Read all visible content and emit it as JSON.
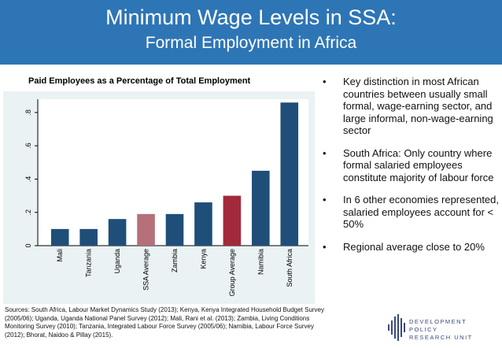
{
  "header": {
    "title": "Minimum Wage Levels in SSA:",
    "subtitle": "Formal Employment in Africa"
  },
  "chart_data": {
    "type": "bar",
    "title": "Paid Employees as a Percentage of Total Employment",
    "categories": [
      "Mali",
      "Tanzania",
      "Uganda",
      "SSA Average",
      "Zambia",
      "Kenya",
      "Group Average",
      "Namibia",
      "South Africa"
    ],
    "values": [
      0.1,
      0.1,
      0.16,
      0.19,
      0.19,
      0.26,
      0.3,
      0.45,
      0.86
    ],
    "colors": [
      "#1f4e79",
      "#1f4e79",
      "#1f4e79",
      "#b5707a",
      "#1f4e79",
      "#1f4e79",
      "#a32a3c",
      "#1f4e79",
      "#1f4e79"
    ],
    "yticks": [
      "0",
      ".2",
      ".4",
      ".6",
      ".8"
    ],
    "ytick_values": [
      0,
      0.2,
      0.4,
      0.6,
      0.8
    ],
    "ylim": [
      0,
      0.88
    ],
    "grid": false
  },
  "sources": "Sources: South Africa, Labour Market Dynamics Study (2013); Kenya, Kenya Integrated Household Budget Survey (2005/06); Uganda, Uganda National Panel Survey (2012); Mali, Rani et al. (2013); Zambia, Living Conditions Monitoring Survey (2010); Tanzania, Integrated Labour Force Survey (2005/06); Namibia, Labour Force Survey (2012); Bhorat, Naidoo & Pillay (2015).",
  "bullets": [
    {
      "marker": "•",
      "text": "Key distinction in most African countries between usually small formal, wage-earning sector, and large informal, non-wage-earning sector"
    },
    {
      "marker": "•",
      "text": "South Africa: Only country where formal salaried employees constitute majority of labour force"
    },
    {
      "marker": "•",
      "text": "In 6 other economies represented, salaried employees account for < 50%"
    },
    {
      "marker": "•",
      "text": "Regional average close to 20%"
    }
  ],
  "logo": {
    "line1": "DEVELOPMENT POLICY",
    "line2": "RESEARCH UNIT",
    "accent": "#3a4a7a"
  }
}
